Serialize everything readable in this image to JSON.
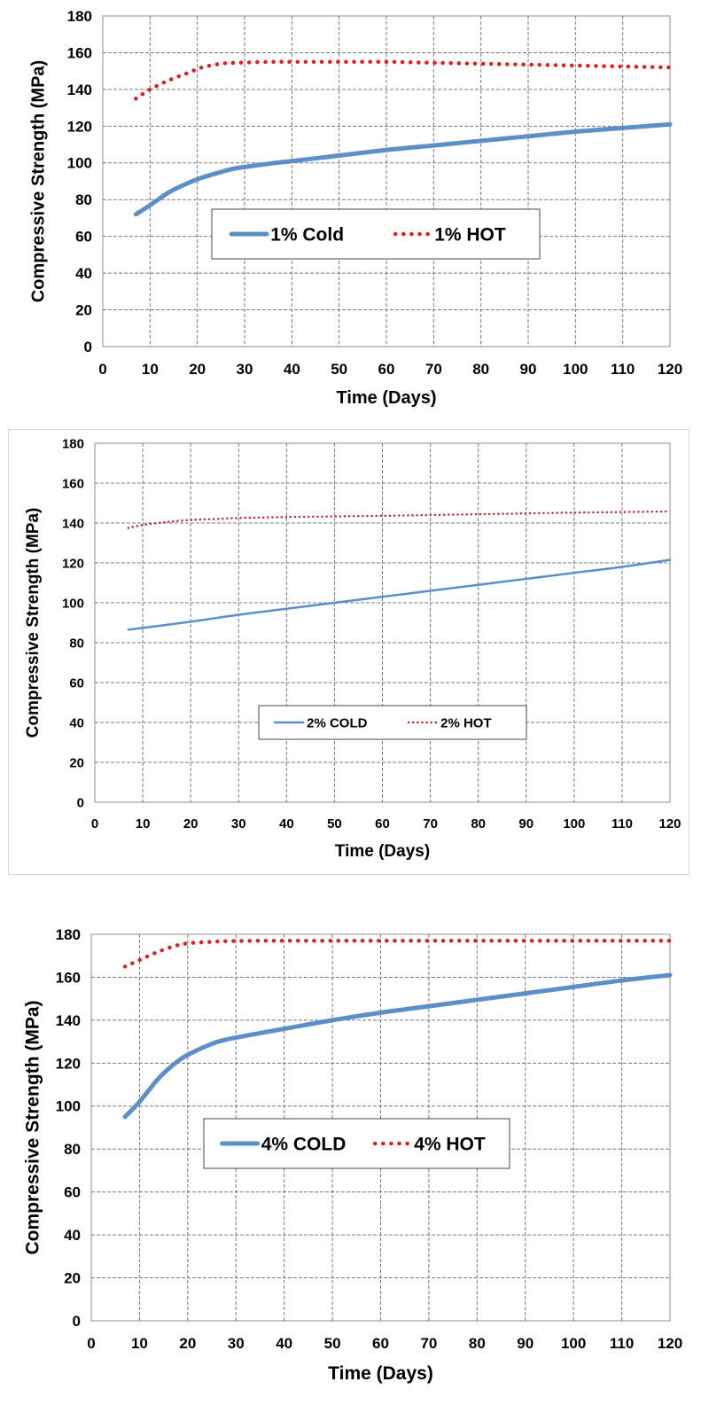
{
  "chart_data": [
    {
      "type": "line",
      "title": "",
      "xlabel": "Time (Days)",
      "ylabel": "Compressive Strength (MPa)",
      "xlim": [
        0,
        120
      ],
      "ylim": [
        0,
        180
      ],
      "x_ticks": [
        0,
        10,
        20,
        30,
        40,
        50,
        60,
        70,
        80,
        90,
        100,
        110,
        120
      ],
      "y_ticks": [
        0,
        20,
        40,
        60,
        80,
        100,
        120,
        140,
        160,
        180
      ],
      "grid": true,
      "legend_position": "center",
      "series": [
        {
          "name": "1% Cold",
          "style": "solid",
          "color": "#5b8fc7",
          "x": [
            7,
            10,
            14,
            18,
            21,
            25,
            28,
            35,
            40,
            50,
            60,
            70,
            80,
            90,
            100,
            110,
            120
          ],
          "values": [
            72,
            77,
            84,
            89,
            92,
            95,
            97,
            99.5,
            101,
            104,
            107,
            109.5,
            112,
            114.5,
            117,
            119,
            121
          ]
        },
        {
          "name": "1% HOT",
          "style": "dotted",
          "color": "#e02020",
          "x": [
            7,
            10,
            14,
            18,
            21,
            25,
            28,
            35,
            40,
            50,
            60,
            70,
            80,
            90,
            100,
            110,
            120
          ],
          "values": [
            135,
            140,
            145,
            149,
            152,
            154,
            154.5,
            155,
            155,
            155,
            155,
            154.5,
            154,
            153.5,
            153,
            152.5,
            152
          ]
        }
      ]
    },
    {
      "type": "line",
      "title": "",
      "xlabel": "Time (Days)",
      "ylabel": "Compressive Strength (MPa)",
      "xlim": [
        0,
        120
      ],
      "ylim": [
        0,
        180
      ],
      "x_ticks": [
        0,
        10,
        20,
        30,
        40,
        50,
        60,
        70,
        80,
        90,
        100,
        110,
        120
      ],
      "y_ticks": [
        0,
        20,
        40,
        60,
        80,
        100,
        120,
        140,
        160,
        180
      ],
      "grid": true,
      "legend_position": "bottom-center",
      "series": [
        {
          "name": "2% COLD",
          "style": "solid",
          "color": "#5b8fc7",
          "x": [
            7,
            20,
            30,
            40,
            50,
            60,
            70,
            80,
            90,
            100,
            110,
            120
          ],
          "values": [
            86.5,
            90.5,
            94,
            97,
            100,
            103,
            106,
            109,
            112,
            115,
            118,
            121.5
          ]
        },
        {
          "name": "2% HOT",
          "style": "dotted",
          "color": "#c0282a",
          "x": [
            7,
            10,
            15,
            20,
            25,
            30,
            40,
            50,
            60,
            70,
            80,
            90,
            100,
            110,
            120
          ],
          "values": [
            137.5,
            139,
            140.5,
            141.5,
            142,
            142.5,
            143,
            143.3,
            143.6,
            144,
            144.4,
            144.8,
            145.2,
            145.5,
            145.8
          ]
        }
      ]
    },
    {
      "type": "line",
      "title": "",
      "xlabel": "Time (Days)",
      "ylabel": "Compressive Strength (MPa)",
      "xlim": [
        0,
        120
      ],
      "ylim": [
        0,
        180
      ],
      "x_ticks": [
        0,
        10,
        20,
        30,
        40,
        50,
        60,
        70,
        80,
        90,
        100,
        110,
        120
      ],
      "y_ticks": [
        0,
        20,
        40,
        60,
        80,
        100,
        120,
        140,
        160,
        180
      ],
      "grid": true,
      "legend_position": "center",
      "series": [
        {
          "name": "4% COLD",
          "style": "solid",
          "color": "#5b8fc7",
          "x": [
            7,
            10,
            14,
            18,
            21,
            25,
            28,
            35,
            40,
            50,
            60,
            70,
            80,
            90,
            100,
            110,
            120
          ],
          "values": [
            95,
            102,
            113,
            121,
            125,
            129,
            131,
            134,
            136,
            140,
            143.5,
            146.5,
            149.5,
            152.5,
            155.5,
            158.5,
            161
          ]
        },
        {
          "name": "4% HOT",
          "style": "dotted",
          "color": "#e02020",
          "x": [
            7,
            10,
            14,
            18,
            21,
            25,
            28,
            35,
            40,
            50,
            60,
            70,
            80,
            90,
            100,
            110,
            120
          ],
          "values": [
            165,
            168,
            172,
            175,
            176,
            176.5,
            176.8,
            177,
            177,
            177,
            177,
            177,
            177,
            177,
            177,
            177,
            177
          ]
        }
      ]
    }
  ]
}
